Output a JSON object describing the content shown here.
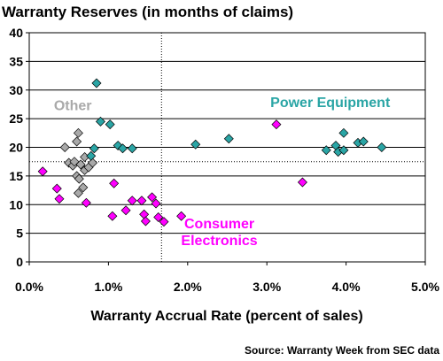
{
  "chart_data": {
    "type": "scatter",
    "title": "Warranty Reserves (in months of claims)",
    "xlabel": "Warranty Accrual Rate (percent of sales)",
    "ylabel": "",
    "source": "Source: Warranty Week from SEC data",
    "xlim": [
      0,
      5
    ],
    "ylim": [
      0,
      40
    ],
    "x_ticks": [
      0,
      1,
      2,
      3,
      4,
      5
    ],
    "x_tick_labels": [
      "0.0%",
      "1.0%",
      "2.0%",
      "3.0%",
      "4.0%",
      "5.0%"
    ],
    "y_ticks": [
      0,
      5,
      10,
      15,
      20,
      25,
      30,
      35,
      40
    ],
    "y_tick_labels": [
      "0",
      "5",
      "10",
      "15",
      "20",
      "25",
      "30",
      "35",
      "40"
    ],
    "grid": "horizontal",
    "reference_lines": {
      "x": 1.67,
      "y": 17.5
    },
    "series": [
      {
        "name": "Other",
        "color": "#a9a9a9",
        "points": [
          [
            0.45,
            20.0
          ],
          [
            0.5,
            17.3
          ],
          [
            0.55,
            16.8
          ],
          [
            0.57,
            17.5
          ],
          [
            0.6,
            21.0
          ],
          [
            0.62,
            22.5
          ],
          [
            0.6,
            15.0
          ],
          [
            0.63,
            14.5
          ],
          [
            0.65,
            17.0
          ],
          [
            0.7,
            18.3
          ],
          [
            0.7,
            16.0
          ],
          [
            0.75,
            16.5
          ],
          [
            0.8,
            17.3
          ],
          [
            0.62,
            12.0
          ],
          [
            0.68,
            13.0
          ]
        ]
      },
      {
        "name": "Power Equipment",
        "color": "#2aa5a5",
        "points": [
          [
            0.85,
            31.2
          ],
          [
            0.9,
            24.5
          ],
          [
            1.02,
            24.0
          ],
          [
            0.82,
            19.8
          ],
          [
            0.78,
            18.5
          ],
          [
            1.12,
            20.3
          ],
          [
            1.18,
            19.8
          ],
          [
            1.3,
            19.8
          ],
          [
            2.1,
            20.5
          ],
          [
            2.52,
            21.5
          ],
          [
            3.75,
            19.5
          ],
          [
            3.87,
            20.3
          ],
          [
            3.9,
            19.2
          ],
          [
            3.97,
            22.5
          ],
          [
            3.97,
            19.5
          ],
          [
            4.15,
            20.8
          ],
          [
            4.22,
            21.0
          ],
          [
            4.45,
            20.0
          ]
        ]
      },
      {
        "name": "Consumer Electronics",
        "color": "#ff00ff",
        "points": [
          [
            0.17,
            15.8
          ],
          [
            0.35,
            12.8
          ],
          [
            0.38,
            11.0
          ],
          [
            0.72,
            10.3
          ],
          [
            1.05,
            8.0
          ],
          [
            1.07,
            13.7
          ],
          [
            1.22,
            9.0
          ],
          [
            1.3,
            10.7
          ],
          [
            1.42,
            10.7
          ],
          [
            1.45,
            8.3
          ],
          [
            1.47,
            7.1
          ],
          [
            1.55,
            11.3
          ],
          [
            1.6,
            10.2
          ],
          [
            1.63,
            7.8
          ],
          [
            1.7,
            7.0
          ],
          [
            1.92,
            8.0
          ],
          [
            3.12,
            24.0
          ],
          [
            3.45,
            13.9
          ]
        ]
      }
    ],
    "annotations": [
      {
        "text": "Other",
        "series": "Other",
        "x": 0.55,
        "y": 26.5
      },
      {
        "text": "Power Equipment",
        "series": "Power Equipment",
        "x": 3.8,
        "y": 27.0
      },
      {
        "text": "Consumer",
        "series": "Consumer Electronics",
        "x": 2.4,
        "y": 5.9
      },
      {
        "text": "Electronics",
        "series": "Consumer Electronics",
        "x": 2.4,
        "y": 2.9
      }
    ]
  }
}
